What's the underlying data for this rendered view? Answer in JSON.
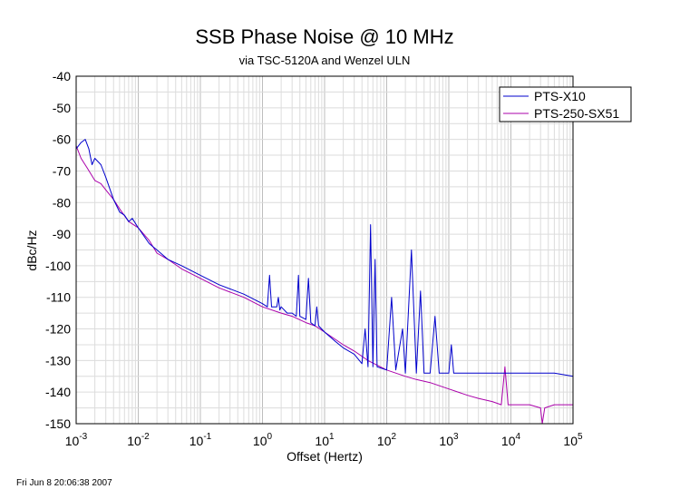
{
  "chart_data": {
    "type": "line",
    "title": "SSB Phase Noise @ 10 MHz",
    "subtitle": "via TSC-5120A and Wenzel ULN",
    "xlabel": "Offset (Hertz)",
    "ylabel": "dBc/Hz",
    "x_scale": "log",
    "xlim": [
      0.001,
      100000
    ],
    "ylim": [
      -150,
      -40
    ],
    "grid": true,
    "legend_position": "top-right",
    "x_ticks": [
      {
        "base": "10",
        "exp": "-3"
      },
      {
        "base": "10",
        "exp": "-2"
      },
      {
        "base": "10",
        "exp": "-1"
      },
      {
        "base": "10",
        "exp": "0"
      },
      {
        "base": "10",
        "exp": "1"
      },
      {
        "base": "10",
        "exp": "2"
      },
      {
        "base": "10",
        "exp": "3"
      },
      {
        "base": "10",
        "exp": "4"
      },
      {
        "base": "10",
        "exp": "5"
      }
    ],
    "y_ticks": [
      "-40",
      "-50",
      "-60",
      "-70",
      "-80",
      "-90",
      "-100",
      "-110",
      "-120",
      "-130",
      "-140",
      "-150"
    ],
    "series": [
      {
        "name": "PTS-X10",
        "color": "#0000cc",
        "points": [
          [
            0.001,
            -63
          ],
          [
            0.0012,
            -61
          ],
          [
            0.0014,
            -60
          ],
          [
            0.0016,
            -63
          ],
          [
            0.0018,
            -68
          ],
          [
            0.002,
            -66
          ],
          [
            0.0025,
            -68
          ],
          [
            0.003,
            -72
          ],
          [
            0.004,
            -79
          ],
          [
            0.005,
            -83
          ],
          [
            0.006,
            -84
          ],
          [
            0.007,
            -86
          ],
          [
            0.008,
            -85
          ],
          [
            0.01,
            -88
          ],
          [
            0.015,
            -93
          ],
          [
            0.02,
            -95
          ],
          [
            0.03,
            -98
          ],
          [
            0.05,
            -100
          ],
          [
            0.1,
            -103
          ],
          [
            0.2,
            -106
          ],
          [
            0.5,
            -109
          ],
          [
            1,
            -112
          ],
          [
            1.2,
            -113
          ],
          [
            1.3,
            -103
          ],
          [
            1.4,
            -113
          ],
          [
            1.7,
            -113
          ],
          [
            1.8,
            -110
          ],
          [
            1.9,
            -114
          ],
          [
            2,
            -113
          ],
          [
            2.5,
            -115
          ],
          [
            3,
            -115
          ],
          [
            3.5,
            -116
          ],
          [
            3.8,
            -103
          ],
          [
            4,
            -116
          ],
          [
            5,
            -117
          ],
          [
            5.5,
            -104
          ],
          [
            6,
            -118
          ],
          [
            7,
            -119
          ],
          [
            7.5,
            -113
          ],
          [
            8,
            -119
          ],
          [
            10,
            -121
          ],
          [
            15,
            -124
          ],
          [
            20,
            -126
          ],
          [
            30,
            -128
          ],
          [
            40,
            -131
          ],
          [
            45,
            -120
          ],
          [
            50,
            -132
          ],
          [
            55,
            -87
          ],
          [
            60,
            -132
          ],
          [
            65,
            -98
          ],
          [
            70,
            -132
          ],
          [
            100,
            -133
          ],
          [
            120,
            -110
          ],
          [
            140,
            -133
          ],
          [
            180,
            -120
          ],
          [
            200,
            -134
          ],
          [
            250,
            -95
          ],
          [
            300,
            -134
          ],
          [
            350,
            -108
          ],
          [
            400,
            -134
          ],
          [
            500,
            -134
          ],
          [
            600,
            -116
          ],
          [
            700,
            -134
          ],
          [
            1000,
            -134
          ],
          [
            1100,
            -125
          ],
          [
            1200,
            -134
          ],
          [
            1500,
            -134
          ],
          [
            2000,
            -134
          ],
          [
            3000,
            -134
          ],
          [
            5000,
            -134
          ],
          [
            8000,
            -134
          ],
          [
            10000,
            -134
          ],
          [
            20000,
            -134
          ],
          [
            50000,
            -134
          ],
          [
            100000,
            -135
          ]
        ]
      },
      {
        "name": "PTS-250-SX51",
        "color": "#aa00aa",
        "points": [
          [
            0.001,
            -62
          ],
          [
            0.0012,
            -66
          ],
          [
            0.0015,
            -69
          ],
          [
            0.002,
            -73
          ],
          [
            0.0025,
            -74
          ],
          [
            0.003,
            -76
          ],
          [
            0.004,
            -79
          ],
          [
            0.005,
            -82
          ],
          [
            0.007,
            -86
          ],
          [
            0.01,
            -88
          ],
          [
            0.015,
            -92
          ],
          [
            0.02,
            -96
          ],
          [
            0.03,
            -98
          ],
          [
            0.05,
            -101
          ],
          [
            0.1,
            -104
          ],
          [
            0.2,
            -107
          ],
          [
            0.5,
            -110
          ],
          [
            1,
            -113
          ],
          [
            2,
            -115
          ],
          [
            3,
            -116
          ],
          [
            5,
            -118
          ],
          [
            7,
            -119
          ],
          [
            10,
            -121
          ],
          [
            20,
            -125
          ],
          [
            30,
            -127
          ],
          [
            50,
            -130
          ],
          [
            100,
            -133
          ],
          [
            200,
            -135
          ],
          [
            300,
            -136
          ],
          [
            500,
            -137
          ],
          [
            1000,
            -139
          ],
          [
            2000,
            -141
          ],
          [
            3000,
            -142
          ],
          [
            5000,
            -143
          ],
          [
            7000,
            -144
          ],
          [
            8000,
            -132
          ],
          [
            9000,
            -144
          ],
          [
            10000,
            -144
          ],
          [
            20000,
            -144
          ],
          [
            30000,
            -145
          ],
          [
            32000,
            -150
          ],
          [
            35000,
            -145
          ],
          [
            50000,
            -144
          ],
          [
            100000,
            -144
          ]
        ]
      }
    ]
  },
  "footer": {
    "timestamp": "Fri Jun  8 20:06:38 2007"
  }
}
